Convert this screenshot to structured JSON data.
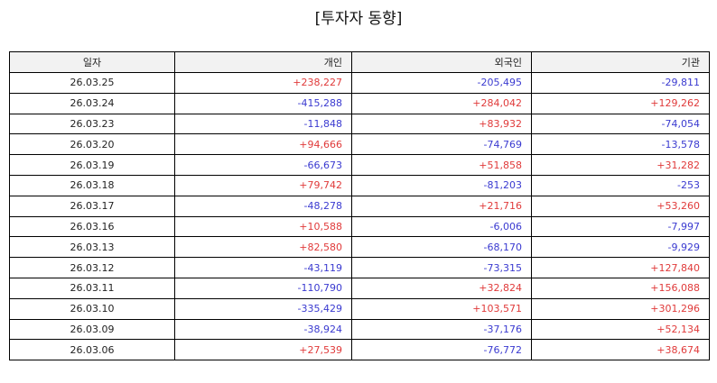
{
  "title": "[투자자 동향]",
  "colors": {
    "positive": "#e03a3a",
    "negative": "#3a3ad0"
  },
  "headers": [
    "일자",
    "개인",
    "외국인",
    "기관"
  ],
  "rows": [
    [
      "26.03.25",
      "+238,227",
      "-205,495",
      "-29,811"
    ],
    [
      "26.03.24",
      "-415,288",
      "+284,042",
      "+129,262"
    ],
    [
      "26.03.23",
      "-11,848",
      "+83,932",
      "-74,054"
    ],
    [
      "26.03.20",
      "+94,666",
      "-74,769",
      "-13,578"
    ],
    [
      "26.03.19",
      "-66,673",
      "+51,858",
      "+31,282"
    ],
    [
      "26.03.18",
      "+79,742",
      "-81,203",
      "-253"
    ],
    [
      "26.03.17",
      "-48,278",
      "+21,716",
      "+53,260"
    ],
    [
      "26.03.16",
      "+10,588",
      "-6,006",
      "-7,997"
    ],
    [
      "26.03.13",
      "+82,580",
      "-68,170",
      "-9,929"
    ],
    [
      "26.03.12",
      "-43,119",
      "-73,315",
      "+127,840"
    ],
    [
      "26.03.11",
      "-110,790",
      "+32,824",
      "+156,088"
    ],
    [
      "26.03.10",
      "-335,429",
      "+103,571",
      "+301,296"
    ],
    [
      "26.03.09",
      "-38,924",
      "-37,176",
      "+52,134"
    ],
    [
      "26.03.06",
      "+27,539",
      "-76,772",
      "+38,674"
    ]
  ]
}
